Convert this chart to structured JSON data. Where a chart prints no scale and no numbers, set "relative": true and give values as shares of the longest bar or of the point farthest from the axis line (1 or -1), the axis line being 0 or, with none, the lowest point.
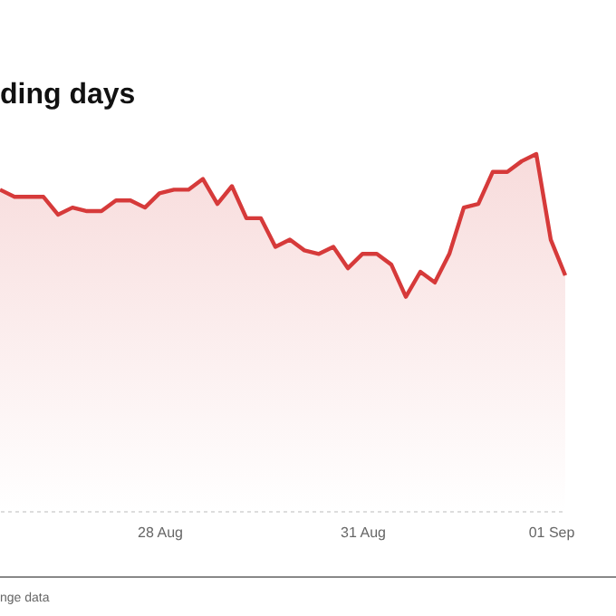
{
  "chart_data": {
    "type": "area",
    "title": "ding days",
    "relative": true,
    "categories": [
      null,
      null,
      null,
      null,
      null,
      null,
      null,
      null,
      null,
      null,
      null,
      "28 Aug",
      null,
      null,
      null,
      null,
      null,
      null,
      null,
      null,
      null,
      null,
      null,
      null,
      null,
      "31 Aug",
      null,
      null,
      null,
      null,
      null,
      null,
      null,
      null,
      null,
      null,
      null,
      null,
      "01 Sep",
      null
    ],
    "series": [
      {
        "color": "#d63a3a",
        "values": [
          0.9,
          0.88,
          0.88,
          0.88,
          0.83,
          0.85,
          0.84,
          0.84,
          0.87,
          0.87,
          0.85,
          0.89,
          0.9,
          0.9,
          0.93,
          0.86,
          0.91,
          0.82,
          0.82,
          0.74,
          0.76,
          0.73,
          0.72,
          0.74,
          0.68,
          0.72,
          0.72,
          0.69,
          0.6,
          0.67,
          0.64,
          0.72,
          0.85,
          0.86,
          0.95,
          0.95,
          0.98,
          1,
          0.76,
          0.66
        ]
      }
    ],
    "annotations": [
      "nge data"
    ]
  }
}
